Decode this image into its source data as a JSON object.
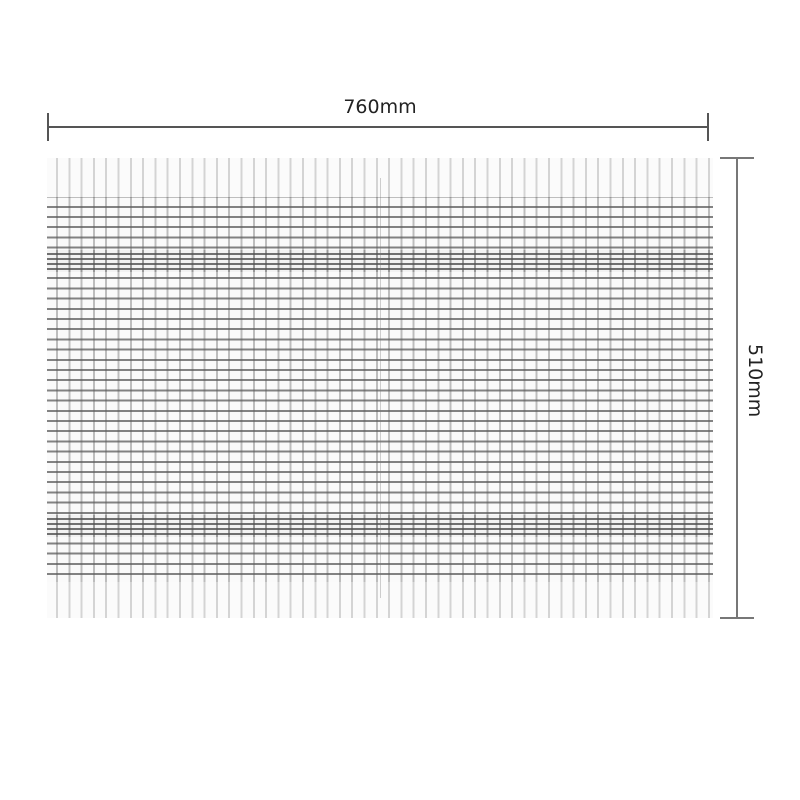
{
  "dimensions": {
    "width_label": "760mm",
    "height_label": "510mm"
  },
  "product": {
    "pattern_color": "#6e6e6e",
    "base_color": "#fbfbfb"
  }
}
